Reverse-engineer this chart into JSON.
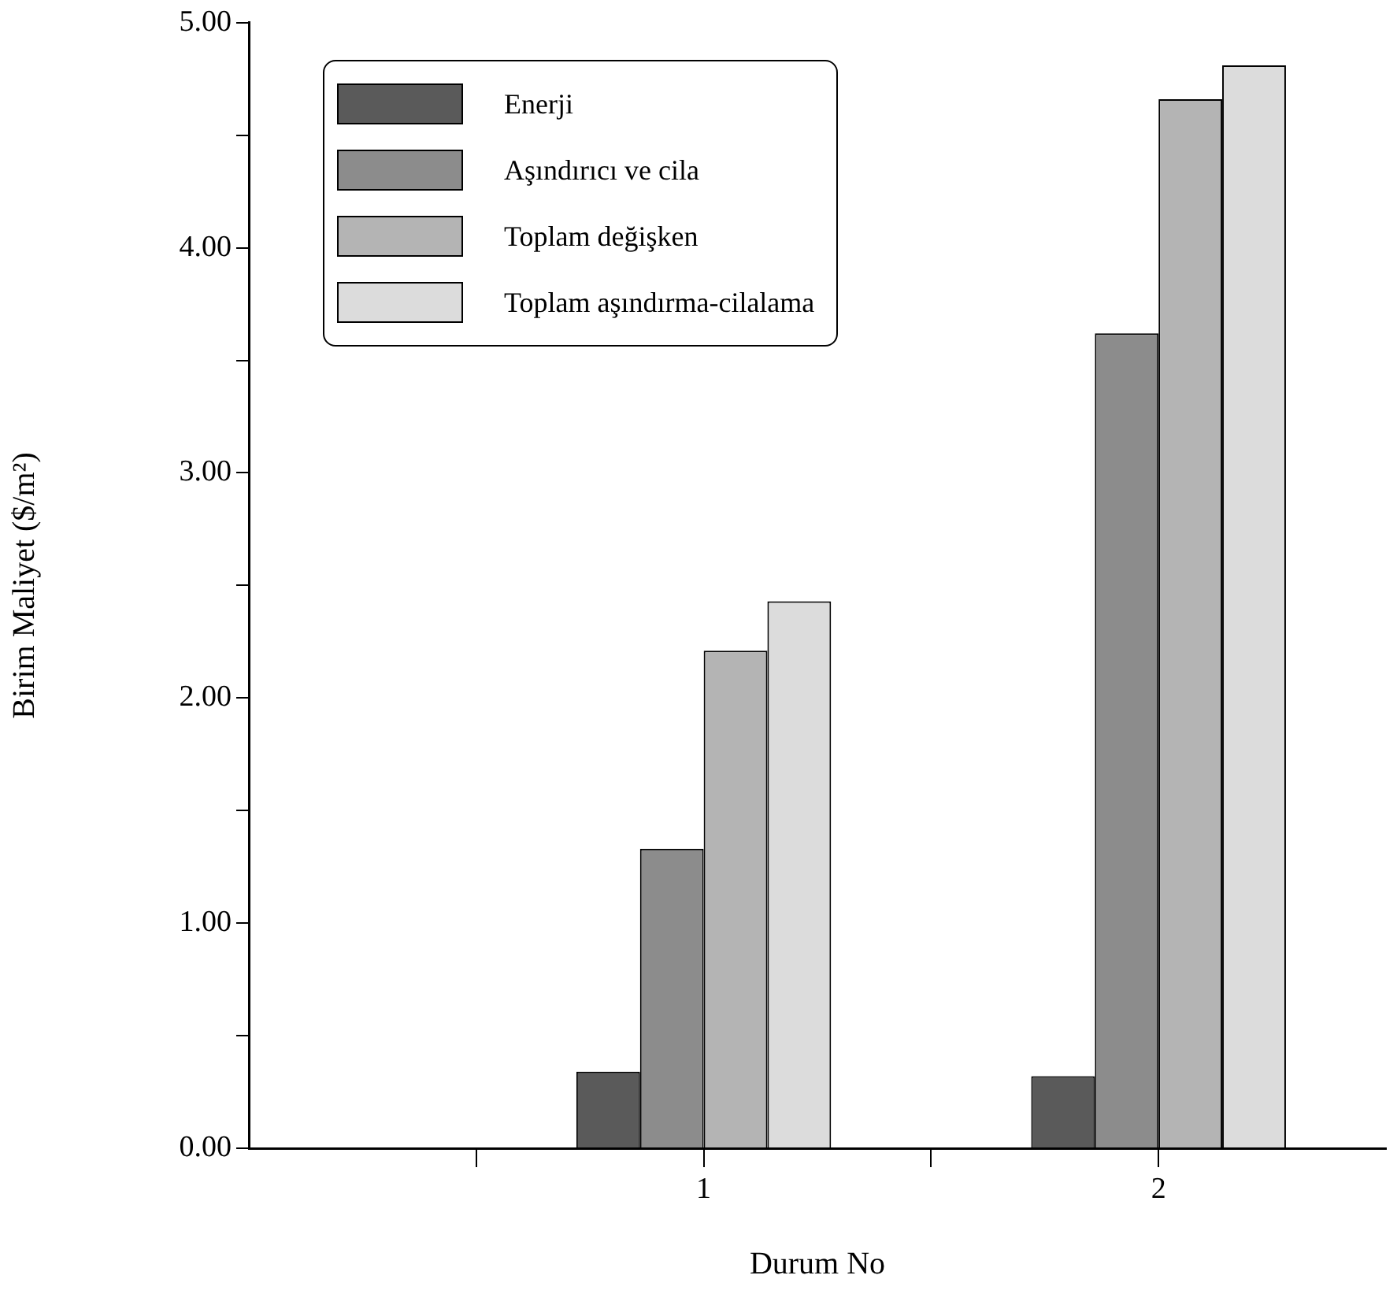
{
  "chart_data": {
    "type": "bar",
    "xlabel": "Durum No",
    "ylabel": "Birim Maliyet ($/m²)",
    "x": [
      1,
      2
    ],
    "xlim": [
      0,
      2.5
    ],
    "xticks": [
      {
        "value": 0.5,
        "label": null
      },
      1,
      {
        "value": 1.5,
        "label": null
      },
      2
    ],
    "ylim": [
      0,
      5
    ],
    "yticks": [
      {
        "value": 0,
        "label": "0.00"
      },
      {
        "value": 0.5,
        "label": null
      },
      {
        "value": 1,
        "label": "1.00"
      },
      {
        "value": 1.5,
        "label": null
      },
      {
        "value": 2,
        "label": "2.00"
      },
      {
        "value": 2.5,
        "label": null
      },
      {
        "value": 3,
        "label": "3.00"
      },
      {
        "value": 3.5,
        "label": null
      },
      {
        "value": 4,
        "label": "4.00"
      },
      {
        "value": 4.5,
        "label": null
      },
      {
        "value": 5,
        "label": "5.00"
      }
    ],
    "series": [
      {
        "name": "Enerji",
        "color": "#5a5a5a",
        "values": [
          0.34,
          0.32
        ]
      },
      {
        "name": "Aşındırıcı ve cila",
        "color": "#8c8c8c",
        "values": [
          1.33,
          3.62
        ]
      },
      {
        "name": "Toplam değişken",
        "color": "#b4b4b4",
        "values": [
          2.21,
          4.66
        ]
      },
      {
        "name": "Toplam aşındırma-cilalama",
        "color": "#dcdcdc",
        "values": [
          2.43,
          4.81
        ]
      }
    ],
    "grid": false,
    "legend": "top left"
  }
}
